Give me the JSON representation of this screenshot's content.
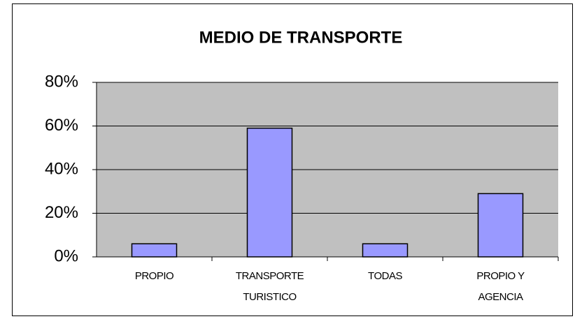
{
  "chart_data": {
    "type": "bar",
    "title": "MEDIO DE TRANSPORTE",
    "categories": [
      "PROPIO",
      "TRANSPORTE TURISTICO",
      "TODAS",
      "PROPIO Y AGENCIA"
    ],
    "values": [
      6,
      59,
      6,
      29
    ],
    "color": "#9999ff",
    "ylim": [
      0,
      80
    ],
    "yticks": [
      {
        "value": 0,
        "label": "0%"
      },
      {
        "value": 20,
        "label": "20%"
      },
      {
        "value": 40,
        "label": "40%"
      },
      {
        "value": 60,
        "label": "60%"
      },
      {
        "value": 80,
        "label": "80%"
      }
    ],
    "grid": true
  }
}
